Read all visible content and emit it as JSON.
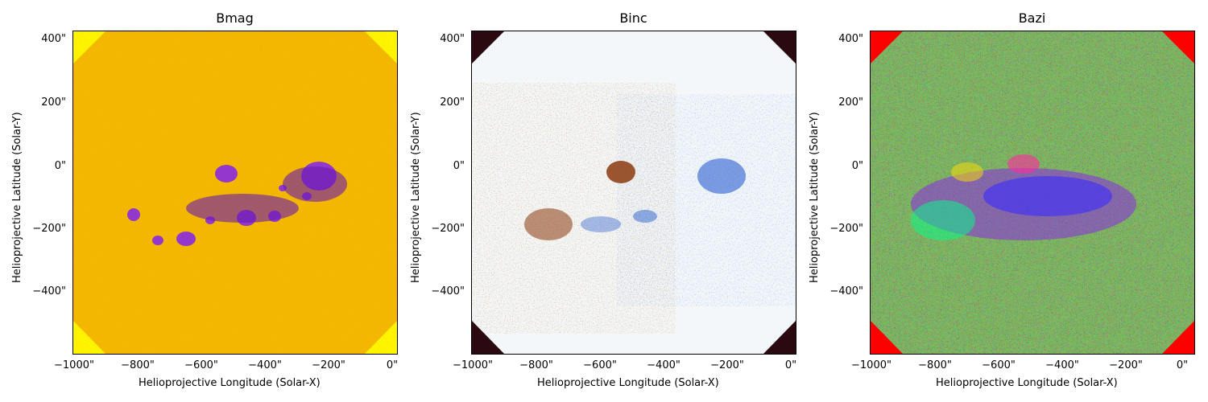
{
  "figure": {
    "panels": [
      {
        "title": "Bmag",
        "colormap": "gnuplot-yellow",
        "xlabel": "Helioprojective Longitude (Solar-X)",
        "ylabel": "Helioprojective Latitude (Solar-Y)",
        "xticks": [
          "−1000\"",
          "−800\"",
          "−600\"",
          "−400\"",
          "−200\"",
          "0\""
        ],
        "yticks": [
          "400\"",
          "200\"",
          "0\"",
          "−200\"",
          "−400\""
        ]
      },
      {
        "title": "Binc",
        "colormap": "brown-white-blue",
        "xlabel": "Helioprojective Longitude (Solar-X)",
        "ylabel": "Helioprojective Latitude (Solar-Y)",
        "xticks": [
          "−1000\"",
          "−800\"",
          "−600\"",
          "−400\"",
          "−200\"",
          "0\""
        ],
        "yticks": [
          "400\"",
          "200\"",
          "0\"",
          "−200\"",
          "−400\""
        ]
      },
      {
        "title": "Bazi",
        "colormap": "hsv",
        "xlabel": "Helioprojective Longitude (Solar-X)",
        "ylabel": "Helioprojective Latitude (Solar-Y)",
        "xticks": [
          "−1000\"",
          "−800\"",
          "−600\"",
          "−400\"",
          "−200\"",
          "0\""
        ],
        "yticks": [
          "400\"",
          "200\"",
          "0\"",
          "−200\"",
          "−400\""
        ]
      }
    ]
  },
  "colors": {
    "bmag_background": "#ffff00",
    "bmag_field": "#f2b400",
    "bmag_spots": "#8a2be2",
    "binc_background": "#2a0a10",
    "binc_field": "#f4f7f9",
    "binc_negative": "#8b3a0e",
    "binc_positive": "#2a5fd0",
    "bazi_background": "#ff0000"
  }
}
